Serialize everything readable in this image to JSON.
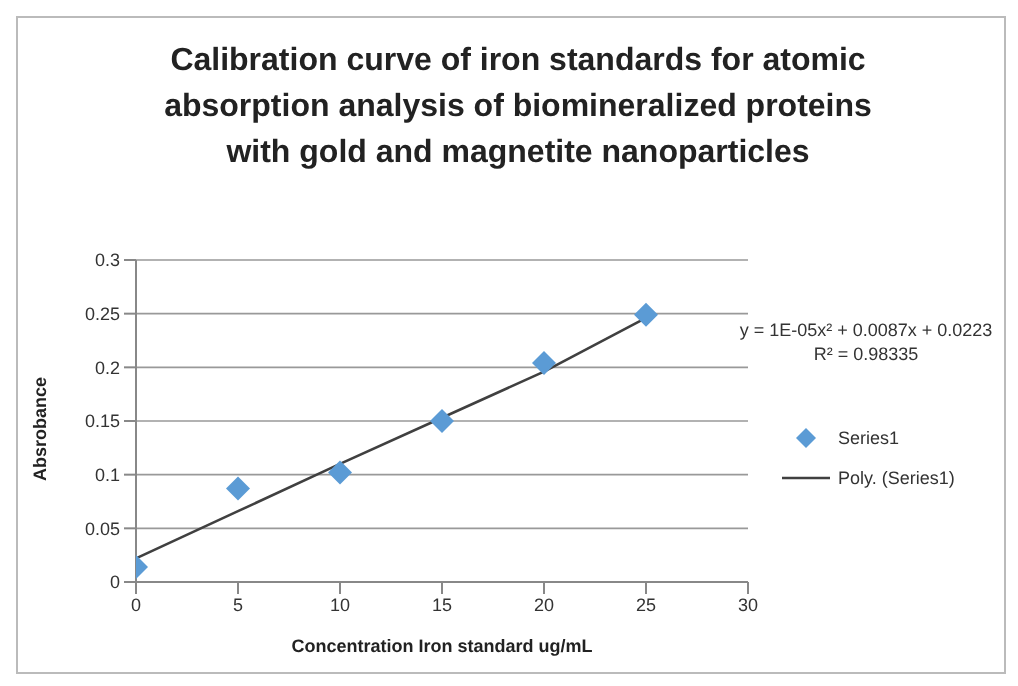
{
  "chart_data": {
    "type": "scatter",
    "title": "Calibration curve of iron standards for atomic absorption analysis of biomineralized proteins with gold and magnetite nanoparticles",
    "xlabel": "Concentration Iron standard ug/mL",
    "ylabel": "Absrobance",
    "series": [
      {
        "name": "Series1",
        "color": "#5b9bd5",
        "marker": "diamond",
        "x": [
          0,
          5,
          10,
          15,
          20,
          25
        ],
        "values": [
          0.014,
          0.087,
          0.102,
          0.15,
          0.204,
          0.249
        ]
      },
      {
        "name": "Poly. (Series1)",
        "type": "line",
        "color": "#404040",
        "marker": "none",
        "x": [
          0,
          5,
          10,
          15,
          20,
          25
        ],
        "values": [
          0.022,
          0.066,
          0.11,
          0.153,
          0.196,
          0.246
        ]
      }
    ],
    "annotations": [
      "y = 1E-05x² + 0.0087x + 0.0223",
      "R² = 0.98335"
    ],
    "xlim": [
      0,
      30
    ],
    "xticks": [
      0,
      5,
      10,
      15,
      20,
      25,
      30
    ],
    "ylim": [
      0,
      0.3
    ],
    "yticks": [
      0,
      0.05,
      0.1,
      0.15,
      0.2,
      0.25,
      0.3
    ],
    "grid": "y",
    "legend": "right"
  }
}
